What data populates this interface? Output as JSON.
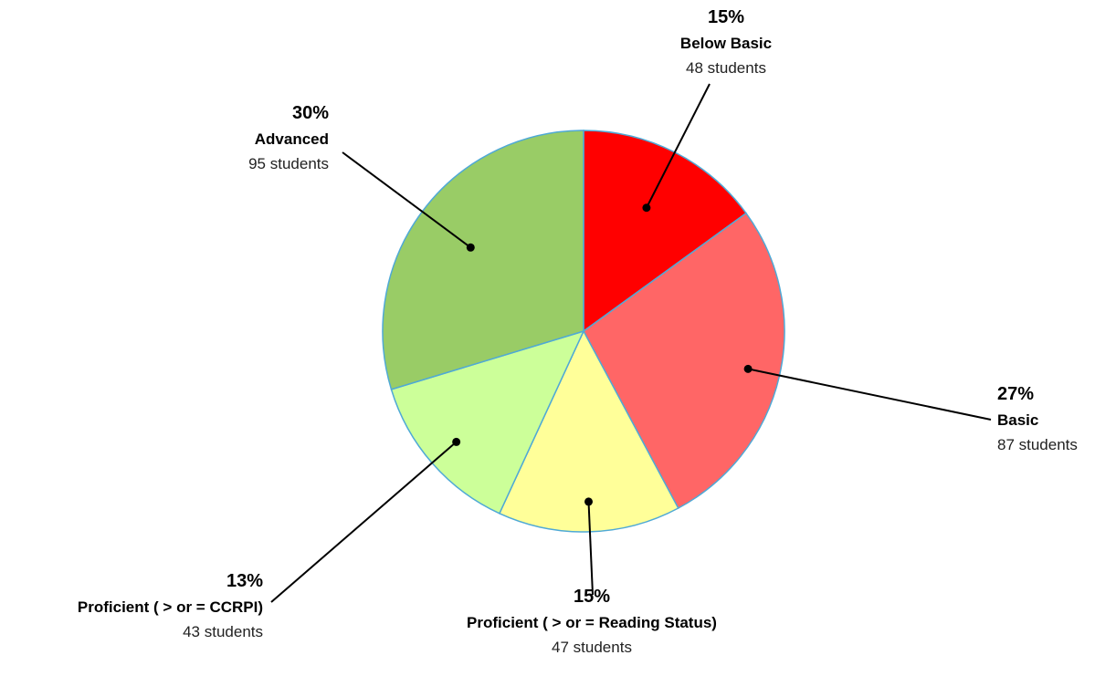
{
  "chart_data": {
    "type": "pie",
    "title": "",
    "start_angle_deg": 0,
    "direction": "clockwise",
    "slice_border_color": "#4fa9d6",
    "slices": [
      {
        "label": "Below Basic",
        "percent_label": "15%",
        "count_label": "48 students",
        "value": 48,
        "color": "#ff0000"
      },
      {
        "label": "Basic",
        "percent_label": "27%",
        "count_label": "87 students",
        "value": 87,
        "color": "#ff6666"
      },
      {
        "label": "Proficient ( > or = Reading Status)",
        "percent_label": "15%",
        "count_label": "47 students",
        "value": 47,
        "color": "#ffff99"
      },
      {
        "label": "Proficient ( > or = CCRPI)",
        "percent_label": "13%",
        "count_label": "43 students",
        "value": 43,
        "color": "#ccff99"
      },
      {
        "label": "Advanced",
        "percent_label": "30%",
        "count_label": "95 students",
        "value": 95,
        "color": "#99cc66"
      }
    ]
  }
}
